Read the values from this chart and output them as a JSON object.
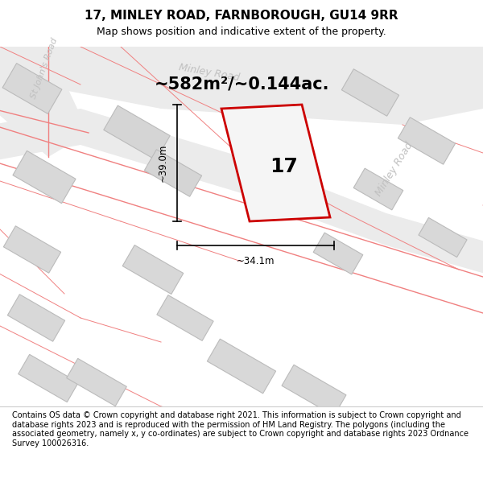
{
  "title": "17, MINLEY ROAD, FARNBOROUGH, GU14 9RR",
  "subtitle": "Map shows position and indicative extent of the property.",
  "footer": "Contains OS data © Crown copyright and database right 2021. This information is subject to Crown copyright and database rights 2023 and is reproduced with the permission of HM Land Registry. The polygons (including the associated geometry, namely x, y co-ordinates) are subject to Crown copyright and database rights 2023 Ordnance Survey 100026316.",
  "area_text": "~582m²/~0.144ac.",
  "width_label": "~34.1m",
  "height_label": "~39.0m",
  "property_number": "17",
  "map_bg": "#ffffff",
  "road_fill": "#ebebeb",
  "road_stroke": "#f08080",
  "property_stroke": "#cc0000",
  "dim_line_color": "#000000",
  "figsize": [
    6.0,
    6.25
  ],
  "dpi": 100
}
